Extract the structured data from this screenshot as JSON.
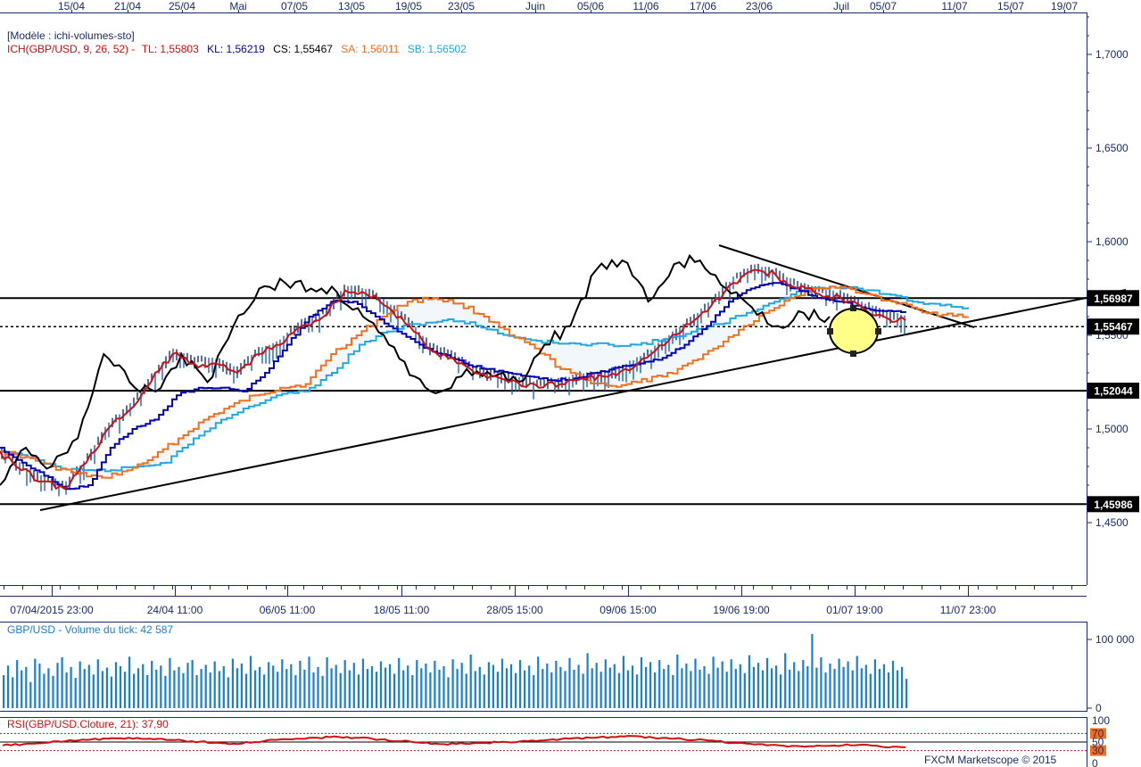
{
  "top_axis_labels": [
    "15/04",
    "21/04",
    "25/04",
    "Mai",
    "07/05",
    "13/05",
    "19/05",
    "23/05",
    "Juin",
    "05/06",
    "11/06",
    "17/06",
    "23/06",
    "Juil",
    "05/07",
    "11/07",
    "15/07",
    "19/07"
  ],
  "bottom_axis_labels": [
    "07/04/2015 23:00",
    "24/04 11:00",
    "06/05 11:00",
    "18/05 11:00",
    "28/05 15:00",
    "09/06 15:00",
    "19/06 19:00",
    "01/07 19:00",
    "11/07 23:00"
  ],
  "legend": {
    "model": "[Modèle : ichi-volumes-sto]",
    "ich": "ICH(GBP/USD, 9, 26, 52) -",
    "tl": "TL: 1,55803",
    "kl": "KL: 1,56219",
    "cs": "CS: 1,55467",
    "sa": "SA: 1,56011",
    "sb": "SB: 1,56502"
  },
  "volume_legend": "GBP/USD - Volume du tick: 42 587",
  "rsi_legend": "RSI(GBP/USD.Cloture, 21): 37,90",
  "footer": "FXCM Marketscope © 2015",
  "colors": {
    "tl": "#d01010",
    "kl": "#0000b0",
    "sa": "#f07020",
    "sb": "#20a8e0",
    "cs": "#000000",
    "volume": "#1a7fd0",
    "rsi": "#d01010",
    "axis_text": "#1a2b6b",
    "cloud_fill": "#f2f7fb"
  },
  "chart_data": [
    {
      "type": "line",
      "title": "GBP/USD",
      "ylim": [
        1.41,
        1.71
      ],
      "yticks": [
        "1,4500",
        "1,5000",
        "1,5500",
        "1,6000",
        "1,6500",
        "1,7000"
      ],
      "horizontal_levels": [
        1.56987,
        1.52044,
        1.45986
      ],
      "dotted_level": 1.55467,
      "price_tags": [
        "1,56987",
        "1,55467",
        "1,52044",
        "1,45986"
      ],
      "annotations": [
        "rising support trendline from 1,4575 (08/04) toward 1,5670 (19/07)",
        "falling resistance trendline from 1,5975 (18/06) to 1,5530 (11/07)",
        "highlighted circle near 1,5500 (01/07-05/07)"
      ],
      "series": [
        {
          "name": "TL",
          "values": [
            1.488,
            1.478,
            1.472,
            1.468,
            1.482,
            1.5,
            1.51,
            1.525,
            1.54,
            1.535,
            1.535,
            1.53,
            1.54,
            1.545,
            1.555,
            1.56,
            1.574,
            1.572,
            1.565,
            1.555,
            1.542,
            1.538,
            1.53,
            1.528,
            1.525,
            1.522,
            1.524,
            1.527,
            1.528,
            1.532,
            1.538,
            1.547,
            1.556,
            1.566,
            1.578,
            1.585,
            1.582,
            1.575,
            1.572,
            1.57,
            1.565,
            1.56,
            1.558
          ]
        },
        {
          "name": "KL",
          "values": [
            1.49,
            1.482,
            1.475,
            1.468,
            1.47,
            1.49,
            1.5,
            1.505,
            1.518,
            1.522,
            1.522,
            1.52,
            1.53,
            1.545,
            1.56,
            1.568,
            1.568,
            1.56,
            1.552,
            1.545,
            1.54,
            1.535,
            1.532,
            1.53,
            1.528,
            1.526,
            1.527,
            1.53,
            1.533,
            1.535,
            1.538,
            1.545,
            1.555,
            1.568,
            1.575,
            1.578,
            1.575,
            1.57,
            1.568,
            1.565,
            1.563,
            1.562
          ]
        },
        {
          "name": "SA",
          "values": [
            1.488,
            1.485,
            1.48,
            1.476,
            1.474,
            1.478,
            1.485,
            1.495,
            1.505,
            1.512,
            1.518,
            1.522,
            1.524,
            1.54,
            1.55,
            1.56,
            1.568,
            1.57,
            1.567,
            1.56,
            1.55,
            1.543,
            1.532,
            1.526,
            1.523,
            1.525,
            1.528,
            1.535,
            1.543,
            1.553,
            1.562,
            1.57,
            1.575,
            1.576,
            1.572,
            1.568,
            1.564,
            1.561,
            1.56
          ]
        },
        {
          "name": "SB",
          "values": [
            1.488,
            1.485,
            1.48,
            1.478,
            1.478,
            1.48,
            1.482,
            1.495,
            1.505,
            1.512,
            1.518,
            1.52,
            1.53,
            1.545,
            1.552,
            1.556,
            1.558,
            1.557,
            1.551,
            1.548,
            1.546,
            1.545,
            1.545,
            1.545,
            1.548,
            1.552,
            1.556,
            1.562,
            1.568,
            1.574,
            1.576,
            1.575,
            1.572,
            1.568,
            1.566,
            1.565
          ]
        },
        {
          "name": "CS",
          "values": [
            1.47,
            1.49,
            1.48,
            1.495,
            1.54,
            1.525,
            1.52,
            1.54,
            1.525,
            1.555,
            1.575,
            1.578,
            1.575,
            1.573,
            1.56,
            1.545,
            1.528,
            1.52,
            1.532,
            1.528,
            1.525,
            1.545,
            1.555,
            1.585,
            1.59,
            1.568,
            1.588,
            1.59,
            1.575,
            1.565,
            1.555,
            1.562,
            1.56
          ]
        }
      ]
    },
    {
      "type": "bar",
      "title": "GBP/USD - Volume du tick: 42 587",
      "yticks": [
        "0",
        "100 000"
      ],
      "ylim": [
        0,
        110000
      ],
      "values": [
        48000,
        62000,
        45000,
        70000,
        55000,
        60000,
        38000,
        72000,
        65000,
        50000,
        58000,
        47000,
        66000,
        74000,
        52000,
        60000,
        44000,
        68000,
        57000,
        63000,
        49000,
        71000,
        54000,
        59000,
        46000,
        67000,
        61000,
        53000,
        75000,
        50000,
        58000,
        64000,
        48000,
        69000,
        56000,
        62000,
        47000,
        73000,
        55000,
        60000,
        51000,
        66000,
        70000,
        48000,
        57000,
        63000,
        52000,
        68000,
        54000,
        61000,
        45000,
        72000,
        58000,
        65000,
        50000,
        76000,
        55000,
        60000,
        49000,
        67000,
        62000,
        53000,
        71000,
        57000,
        64000,
        48000,
        69000,
        56000,
        75000,
        52000,
        60000,
        47000,
        74000,
        58000,
        63000,
        51000,
        70000,
        55000,
        66000,
        49000,
        72000,
        57000,
        61000,
        53000,
        68000,
        59000,
        64000,
        50000,
        73000,
        55000,
        62000,
        48000,
        70000,
        58000,
        65000,
        52000,
        69000,
        56000,
        61000,
        45000,
        71000,
        57000,
        66000,
        50000,
        78000,
        54000,
        60000,
        49000,
        67000,
        63000,
        53000,
        72000,
        58000,
        64000,
        51000,
        70000,
        55000,
        62000,
        48000,
        75000,
        57000,
        65000,
        52000,
        69000,
        60000,
        54000,
        73000,
        56000,
        63000,
        50000,
        80000,
        58000,
        66000,
        53000,
        71000,
        59000,
        64000,
        51000,
        76000,
        55000,
        62000,
        49000,
        74000,
        60000,
        67000,
        52000,
        70000,
        57000,
        63000,
        48000,
        78000,
        58000,
        65000,
        54000,
        72000,
        56000,
        61000,
        50000,
        75000,
        59000,
        68000,
        53000,
        71000,
        57000,
        64000,
        51000,
        77000,
        60000,
        66000,
        55000,
        73000,
        58000,
        62000,
        49000,
        80000,
        56000,
        67000,
        54000,
        70000,
        61000,
        108000,
        59000,
        74000,
        52000,
        65000,
        57000,
        72000,
        60000,
        68000,
        55000,
        76000,
        58000,
        63000,
        50000,
        71000,
        57000,
        64000,
        52000,
        69000,
        55000,
        60000,
        42587
      ]
    },
    {
      "type": "line",
      "title": "RSI(GBP/USD.Cloture, 21): 37,90",
      "ylim": [
        0,
        100
      ],
      "yticks": [
        "100",
        "70",
        "50",
        "30",
        "0"
      ],
      "series": [
        {
          "name": "RSI",
          "values": [
            42,
            45,
            48,
            52,
            55,
            58,
            60,
            58,
            55,
            52,
            48,
            46,
            50,
            55,
            58,
            60,
            62,
            60,
            56,
            52,
            48,
            45,
            46,
            48,
            50,
            52,
            55,
            58,
            60,
            62,
            64,
            60,
            58,
            55,
            52,
            48,
            45,
            42,
            40,
            41,
            42,
            44,
            38,
            37.9
          ]
        }
      ]
    }
  ]
}
